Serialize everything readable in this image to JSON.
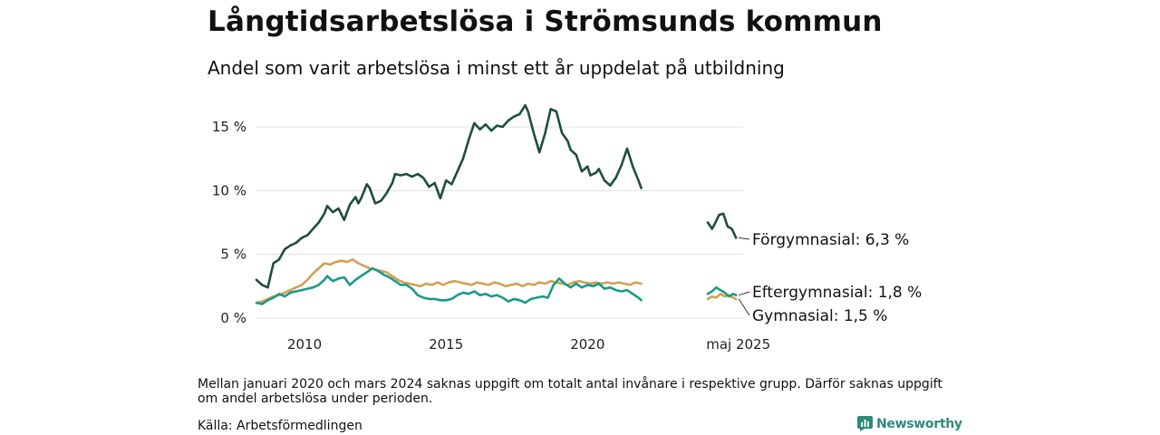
{
  "title": "Långtidsarbetslösa i Strömsunds kommun",
  "subtitle": "Andel som varit arbetslösa i minst ett år uppdelat på utbildning",
  "footnote": "Mellan januari 2020 och mars 2024 saknas uppgift om totalt antal invånare i respektive grupp. Därför saknas uppgift om andel arbetslösa under perioden.",
  "source": "Källa: Arbetsförmedlingen",
  "brand": "Newsworthy",
  "colors": {
    "Förgymnasial": "#1f4e3d",
    "Gymnasial": "#d2a052",
    "Eftergymnasial": "#1a9a8a",
    "grid": "#dddddd",
    "brand": "#2e8b7a"
  },
  "chart_data": {
    "type": "line",
    "title": "Långtidsarbetslösa i Strömsunds kommun",
    "subtitle": "Andel som varit arbetslösa i minst ett år uppdelat på utbildning",
    "y_unit": "%",
    "ylim": [
      0,
      16
    ],
    "yticks": [
      0,
      5,
      10,
      15
    ],
    "ytick_labels": [
      "0 %",
      "5 %",
      "10 %",
      "15 %"
    ],
    "xlim": [
      2008.3,
      2025.5
    ],
    "xticks": [
      2010,
      2015,
      2020,
      2025.33
    ],
    "xtick_labels": [
      "2010",
      "2015",
      "2020",
      "maj 2025"
    ],
    "grid": true,
    "series": [
      {
        "name": "Förgymnasial",
        "end_label": "Förgymnasial: 6,3 %",
        "segments": [
          [
            [
              2008.3,
              3.0
            ],
            [
              2008.5,
              2.6
            ],
            [
              2008.7,
              2.4
            ],
            [
              2008.9,
              4.3
            ],
            [
              2009.1,
              4.6
            ],
            [
              2009.3,
              5.4
            ],
            [
              2009.5,
              5.7
            ],
            [
              2009.7,
              5.9
            ],
            [
              2009.9,
              6.3
            ],
            [
              2010.1,
              6.5
            ],
            [
              2010.3,
              7.0
            ],
            [
              2010.5,
              7.5
            ],
            [
              2010.7,
              8.2
            ],
            [
              2010.8,
              8.8
            ],
            [
              2011.0,
              8.3
            ],
            [
              2011.2,
              8.6
            ],
            [
              2011.4,
              7.7
            ],
            [
              2011.6,
              8.9
            ],
            [
              2011.8,
              9.5
            ],
            [
              2011.9,
              9.0
            ],
            [
              2012.0,
              9.4
            ],
            [
              2012.2,
              10.5
            ],
            [
              2012.3,
              10.2
            ],
            [
              2012.5,
              9.0
            ],
            [
              2012.7,
              9.2
            ],
            [
              2012.9,
              9.8
            ],
            [
              2013.1,
              10.6
            ],
            [
              2013.2,
              11.3
            ],
            [
              2013.4,
              11.2
            ],
            [
              2013.6,
              11.3
            ],
            [
              2013.8,
              11.1
            ],
            [
              2014.0,
              11.3
            ],
            [
              2014.2,
              11.0
            ],
            [
              2014.4,
              10.3
            ],
            [
              2014.6,
              10.6
            ],
            [
              2014.8,
              9.4
            ],
            [
              2015.0,
              10.8
            ],
            [
              2015.2,
              10.5
            ],
            [
              2015.4,
              11.5
            ],
            [
              2015.6,
              12.5
            ],
            [
              2015.8,
              14.0
            ],
            [
              2016.0,
              15.3
            ],
            [
              2016.2,
              14.8
            ],
            [
              2016.4,
              15.2
            ],
            [
              2016.6,
              14.7
            ],
            [
              2016.8,
              15.1
            ],
            [
              2017.0,
              15.0
            ],
            [
              2017.2,
              15.5
            ],
            [
              2017.4,
              15.8
            ],
            [
              2017.6,
              16.0
            ],
            [
              2017.8,
              16.7
            ],
            [
              2017.9,
              16.2
            ],
            [
              2018.1,
              14.5
            ],
            [
              2018.3,
              13.0
            ],
            [
              2018.5,
              14.5
            ],
            [
              2018.7,
              16.4
            ],
            [
              2018.9,
              16.2
            ],
            [
              2019.1,
              14.5
            ],
            [
              2019.3,
              13.9
            ],
            [
              2019.4,
              13.2
            ],
            [
              2019.6,
              12.8
            ],
            [
              2019.8,
              11.5
            ],
            [
              2020.0,
              11.9
            ],
            [
              2020.1,
              11.2
            ],
            [
              2020.3,
              11.4
            ],
            [
              2020.4,
              11.7
            ],
            [
              2020.6,
              10.8
            ],
            [
              2020.8,
              10.4
            ],
            [
              2021.0,
              11.0
            ],
            [
              2021.2,
              12.0
            ],
            [
              2021.4,
              13.3
            ],
            [
              2021.6,
              11.9
            ],
            [
              2021.8,
              10.8
            ],
            [
              2021.9,
              10.2
            ]
          ],
          [
            [
              2024.25,
              7.5
            ],
            [
              2024.4,
              7.0
            ],
            [
              2024.5,
              7.4
            ],
            [
              2024.65,
              8.1
            ],
            [
              2024.8,
              8.2
            ],
            [
              2024.95,
              7.2
            ],
            [
              2025.1,
              7.0
            ],
            [
              2025.25,
              6.3
            ]
          ]
        ]
      },
      {
        "name": "Eftergymnasial",
        "end_label": "Eftergymnasial: 1,8 %",
        "segments": [
          [
            [
              2008.3,
              1.2
            ],
            [
              2008.5,
              1.1
            ],
            [
              2008.7,
              1.4
            ],
            [
              2008.9,
              1.6
            ],
            [
              2009.1,
              1.9
            ],
            [
              2009.3,
              1.7
            ],
            [
              2009.5,
              2.0
            ],
            [
              2009.7,
              2.1
            ],
            [
              2009.9,
              2.2
            ],
            [
              2010.1,
              2.3
            ],
            [
              2010.3,
              2.4
            ],
            [
              2010.5,
              2.6
            ],
            [
              2010.7,
              3.0
            ],
            [
              2010.8,
              3.3
            ],
            [
              2011.0,
              2.9
            ],
            [
              2011.2,
              3.1
            ],
            [
              2011.4,
              3.2
            ],
            [
              2011.6,
              2.6
            ],
            [
              2011.8,
              3.0
            ],
            [
              2012.0,
              3.3
            ],
            [
              2012.2,
              3.6
            ],
            [
              2012.4,
              3.9
            ],
            [
              2012.6,
              3.7
            ],
            [
              2012.8,
              3.4
            ],
            [
              2013.0,
              3.2
            ],
            [
              2013.2,
              2.9
            ],
            [
              2013.4,
              2.6
            ],
            [
              2013.6,
              2.6
            ],
            [
              2013.8,
              2.3
            ],
            [
              2014.0,
              1.8
            ],
            [
              2014.2,
              1.6
            ],
            [
              2014.4,
              1.5
            ],
            [
              2014.6,
              1.5
            ],
            [
              2014.8,
              1.4
            ],
            [
              2015.0,
              1.4
            ],
            [
              2015.2,
              1.5
            ],
            [
              2015.4,
              1.8
            ],
            [
              2015.6,
              2.0
            ],
            [
              2015.8,
              1.9
            ],
            [
              2016.0,
              2.1
            ],
            [
              2016.2,
              1.8
            ],
            [
              2016.4,
              1.9
            ],
            [
              2016.6,
              1.7
            ],
            [
              2016.8,
              1.8
            ],
            [
              2017.0,
              1.6
            ],
            [
              2017.2,
              1.3
            ],
            [
              2017.4,
              1.5
            ],
            [
              2017.6,
              1.4
            ],
            [
              2017.8,
              1.2
            ],
            [
              2018.0,
              1.5
            ],
            [
              2018.2,
              1.6
            ],
            [
              2018.4,
              1.7
            ],
            [
              2018.6,
              1.6
            ],
            [
              2018.8,
              2.6
            ],
            [
              2019.0,
              3.1
            ],
            [
              2019.2,
              2.7
            ],
            [
              2019.4,
              2.4
            ],
            [
              2019.6,
              2.7
            ],
            [
              2019.8,
              2.4
            ],
            [
              2020.0,
              2.6
            ],
            [
              2020.2,
              2.5
            ],
            [
              2020.4,
              2.7
            ],
            [
              2020.6,
              2.3
            ],
            [
              2020.8,
              2.4
            ],
            [
              2021.0,
              2.2
            ],
            [
              2021.2,
              2.1
            ],
            [
              2021.4,
              2.2
            ],
            [
              2021.6,
              1.9
            ],
            [
              2021.8,
              1.6
            ],
            [
              2021.9,
              1.4
            ]
          ],
          [
            [
              2024.25,
              1.9
            ],
            [
              2024.4,
              2.1
            ],
            [
              2024.55,
              2.4
            ],
            [
              2024.7,
              2.2
            ],
            [
              2024.85,
              2.0
            ],
            [
              2025.0,
              1.7
            ],
            [
              2025.15,
              1.9
            ],
            [
              2025.25,
              1.8
            ]
          ]
        ]
      },
      {
        "name": "Gymnasial",
        "end_label": "Gymnasial: 1,5 %",
        "segments": [
          [
            [
              2008.3,
              1.2
            ],
            [
              2008.5,
              1.3
            ],
            [
              2008.7,
              1.5
            ],
            [
              2008.9,
              1.7
            ],
            [
              2009.1,
              1.8
            ],
            [
              2009.3,
              2.0
            ],
            [
              2009.5,
              2.2
            ],
            [
              2009.7,
              2.4
            ],
            [
              2009.9,
              2.6
            ],
            [
              2010.1,
              3.0
            ],
            [
              2010.3,
              3.5
            ],
            [
              2010.5,
              3.9
            ],
            [
              2010.7,
              4.3
            ],
            [
              2010.9,
              4.2
            ],
            [
              2011.1,
              4.4
            ],
            [
              2011.3,
              4.5
            ],
            [
              2011.5,
              4.4
            ],
            [
              2011.7,
              4.6
            ],
            [
              2011.9,
              4.3
            ],
            [
              2012.1,
              4.1
            ],
            [
              2012.3,
              3.9
            ],
            [
              2012.5,
              3.8
            ],
            [
              2012.7,
              3.7
            ],
            [
              2012.9,
              3.6
            ],
            [
              2013.1,
              3.3
            ],
            [
              2013.3,
              3.0
            ],
            [
              2013.5,
              2.8
            ],
            [
              2013.7,
              2.7
            ],
            [
              2013.9,
              2.6
            ],
            [
              2014.1,
              2.5
            ],
            [
              2014.3,
              2.7
            ],
            [
              2014.5,
              2.6
            ],
            [
              2014.7,
              2.8
            ],
            [
              2014.9,
              2.6
            ],
            [
              2015.1,
              2.8
            ],
            [
              2015.3,
              2.9
            ],
            [
              2015.5,
              2.8
            ],
            [
              2015.7,
              2.7
            ],
            [
              2015.9,
              2.6
            ],
            [
              2016.1,
              2.8
            ],
            [
              2016.3,
              2.7
            ],
            [
              2016.5,
              2.6
            ],
            [
              2016.7,
              2.8
            ],
            [
              2016.9,
              2.7
            ],
            [
              2017.1,
              2.5
            ],
            [
              2017.3,
              2.6
            ],
            [
              2017.5,
              2.7
            ],
            [
              2017.7,
              2.5
            ],
            [
              2017.9,
              2.7
            ],
            [
              2018.1,
              2.6
            ],
            [
              2018.3,
              2.8
            ],
            [
              2018.5,
              2.7
            ],
            [
              2018.7,
              2.9
            ],
            [
              2018.9,
              2.8
            ],
            [
              2019.1,
              2.7
            ],
            [
              2019.3,
              2.6
            ],
            [
              2019.5,
              2.8
            ],
            [
              2019.7,
              2.9
            ],
            [
              2019.9,
              2.8
            ],
            [
              2020.1,
              2.7
            ],
            [
              2020.3,
              2.8
            ],
            [
              2020.5,
              2.7
            ],
            [
              2020.7,
              2.8
            ],
            [
              2020.9,
              2.7
            ],
            [
              2021.1,
              2.8
            ],
            [
              2021.3,
              2.7
            ],
            [
              2021.5,
              2.6
            ],
            [
              2021.7,
              2.8
            ],
            [
              2021.9,
              2.7
            ]
          ],
          [
            [
              2024.25,
              1.5
            ],
            [
              2024.4,
              1.7
            ],
            [
              2024.55,
              1.6
            ],
            [
              2024.7,
              1.9
            ],
            [
              2024.85,
              1.7
            ],
            [
              2025.0,
              1.8
            ],
            [
              2025.15,
              1.6
            ],
            [
              2025.25,
              1.5
            ]
          ]
        ]
      }
    ]
  }
}
